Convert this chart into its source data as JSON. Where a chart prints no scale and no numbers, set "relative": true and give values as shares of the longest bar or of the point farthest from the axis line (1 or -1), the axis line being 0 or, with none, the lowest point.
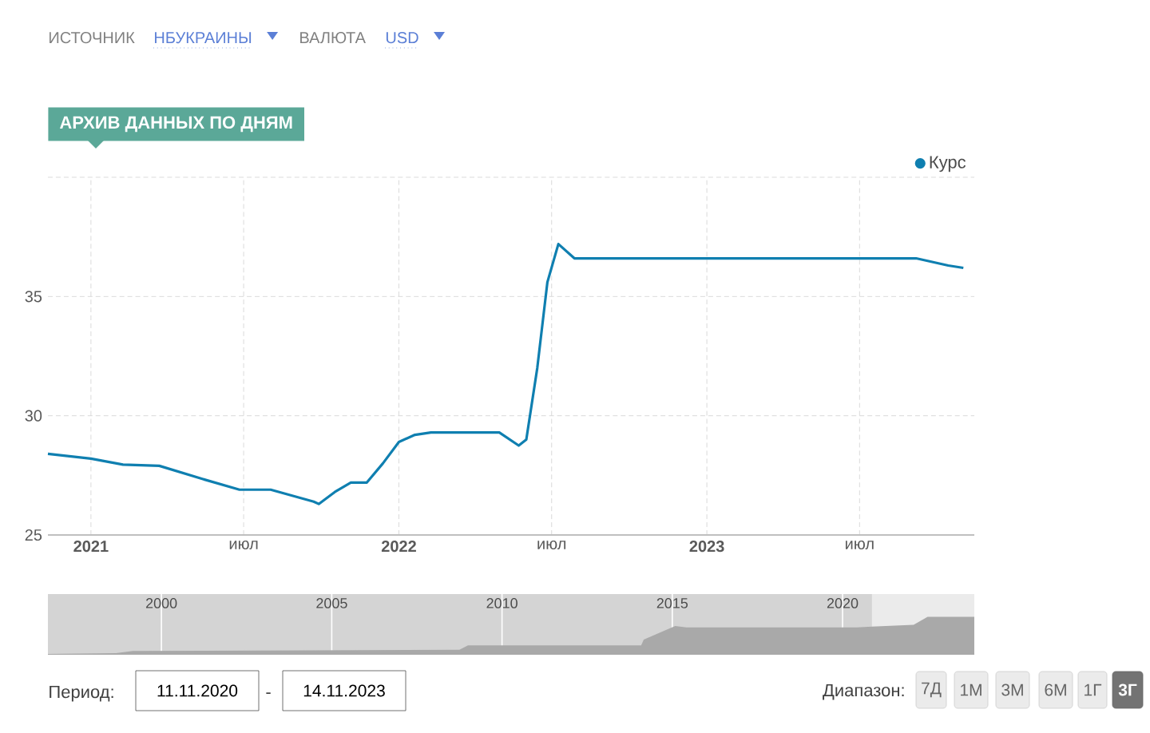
{
  "chart_data": [
    {
      "type": "line",
      "title": "АРХИВ ДАННЫХ ПО ДНЯМ",
      "x": [
        "2020-11-11",
        "2021-01-01",
        "2021-02-08",
        "2021-03-23",
        "2021-05-13",
        "2021-06-26",
        "2021-08-02",
        "2021-09-22",
        "2021-09-28",
        "2021-10-17",
        "2021-11-05",
        "2021-11-24",
        "2021-12-13",
        "2022-01-01",
        "2022-01-20",
        "2022-02-08",
        "2022-04-30",
        "2022-05-23",
        "2022-06-01",
        "2022-06-14",
        "2022-06-26",
        "2022-07-09",
        "2022-07-28",
        "2023-09-06",
        "2023-10-14",
        "2023-11-01"
      ],
      "series": [
        {
          "name": "Курс",
          "color": "#0f7fb0",
          "values": [
            28.4,
            28.2,
            27.95,
            27.9,
            27.35,
            26.9,
            26.9,
            26.4,
            26.3,
            26.8,
            27.2,
            27.2,
            28.0,
            28.9,
            29.2,
            29.3,
            29.3,
            28.75,
            29.0,
            32.0,
            35.6,
            37.2,
            36.6,
            36.6,
            36.3,
            36.2
          ]
        }
      ],
      "xlim": [
        "2020-11-11",
        "2023-11-14"
      ],
      "xticks": [
        {
          "value": "2021-01-01",
          "label": "2021"
        },
        {
          "value": "2021-07-01",
          "label": "июл"
        },
        {
          "value": "2022-01-01",
          "label": "2022"
        },
        {
          "value": "2022-07-01",
          "label": "июл"
        },
        {
          "value": "2023-01-01",
          "label": "2023"
        },
        {
          "value": "2023-07-01",
          "label": "июл"
        }
      ],
      "ylim": [
        25,
        40
      ],
      "yticks": [
        25,
        30,
        35,
        {
          "value": 40,
          "label": null
        }
      ],
      "grid": true,
      "legend": "top right",
      "annotations": [
        "ИСТОЧНИК",
        "НБУКРАИНЫ",
        "ВАЛЮТА",
        "USD"
      ]
    },
    {
      "type": "area",
      "relative": true,
      "color": "#a9a9a9",
      "x": [
        "1996-09-01",
        "1998-09-01",
        "1999-03-01",
        "2008-10-01",
        "2009-01-01",
        "2014-02-01",
        "2014-03-01",
        "2015-02-01",
        "2015-06-01",
        "2020-06-01",
        "2020-11-11",
        "2022-02-01",
        "2022-07-01",
        "2023-11-14"
      ],
      "values": [
        0.02,
        0.04,
        0.1,
        0.13,
        0.25,
        0.25,
        0.4,
        0.76,
        0.72,
        0.72,
        0.74,
        0.79,
        1.0,
        1.0
      ],
      "xlim": [
        "1996-09-01",
        "2023-11-14"
      ],
      "xticks": [
        {
          "value": "2000-01-01",
          "label": "2000"
        },
        {
          "value": "2005-01-01",
          "label": "2005"
        },
        {
          "value": "2010-01-01",
          "label": "2010"
        },
        {
          "value": "2015-01-01",
          "label": "2015"
        },
        {
          "value": "2020-01-01",
          "label": "2020"
        }
      ],
      "grid": "x",
      "bands": [
        {
          "axis": "x",
          "from": "2020-11-11",
          "to": "2023-11-14",
          "color": "#ebebeb"
        }
      ],
      "annotations": [
        "Период:",
        "11.11.2020",
        "-",
        "14.11.2023",
        "Диапазон:",
        "7Д",
        "1М",
        "3М",
        "6М",
        "1Г",
        "3Г"
      ]
    }
  ]
}
